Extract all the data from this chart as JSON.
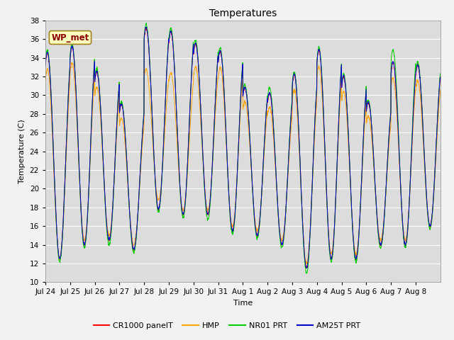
{
  "title": "Temperatures",
  "xlabel": "Time",
  "ylabel": "Temperature (C)",
  "ylim": [
    10,
    38
  ],
  "yticks": [
    10,
    12,
    14,
    16,
    18,
    20,
    22,
    24,
    26,
    28,
    30,
    32,
    34,
    36,
    38
  ],
  "annotation_label": "WP_met",
  "annotation_color": "#8B0000",
  "annotation_bg": "#FFFFC0",
  "series_colors": [
    "#FF0000",
    "#FFA500",
    "#00CC00",
    "#0000CD"
  ],
  "series_labels": [
    "CR1000 panelT",
    "HMP",
    "NR01 PRT",
    "AM25T PRT"
  ],
  "plot_bg_color": "#DCDCDC",
  "fig_bg_color": "#F2F2F2",
  "n_days": 16,
  "points_per_day": 144,
  "day_labels": [
    "Jul 24",
    "Jul 25",
    "Jul 26",
    "Jul 27",
    "Jul 28",
    "Jul 29",
    "Jul 30",
    "Jul 31",
    "Aug 1",
    "Aug 2",
    "Aug 3",
    "Aug 4",
    "Aug 5",
    "Aug 6",
    "Aug 7",
    "Aug 8"
  ],
  "daily_max": [
    34.5,
    35.2,
    32.5,
    29.0,
    37.2,
    36.8,
    35.5,
    34.7,
    30.8,
    30.2,
    32.2,
    34.8,
    32.0,
    29.2,
    33.5,
    33.2
  ],
  "daily_min": [
    12.5,
    14.0,
    14.5,
    13.5,
    17.8,
    17.2,
    17.2,
    15.5,
    15.0,
    14.0,
    11.5,
    12.5,
    12.5,
    14.0,
    14.0,
    16.0
  ],
  "peak_hour": [
    0.58,
    0.58,
    0.58,
    0.58,
    0.58,
    0.58,
    0.58,
    0.58,
    0.58,
    0.58,
    0.58,
    0.58,
    0.58,
    0.58,
    0.58,
    0.58
  ],
  "hmp_max_scale": [
    0.95,
    0.95,
    0.95,
    0.95,
    0.88,
    0.88,
    0.93,
    0.95,
    0.95,
    0.95,
    0.95,
    0.95,
    0.95,
    0.95,
    0.95,
    0.95
  ],
  "hmp_min_offset": [
    0.0,
    0.5,
    0.5,
    0.5,
    1.0,
    0.5,
    0.5,
    0.5,
    0.5,
    0.5,
    0.5,
    0.5,
    0.5,
    0.5,
    0.5,
    0.0
  ],
  "nr01_max_scale": [
    1.01,
    1.01,
    1.01,
    1.01,
    1.01,
    1.01,
    1.01,
    1.01,
    1.01,
    1.02,
    1.01,
    1.01,
    1.01,
    1.01,
    1.04,
    1.01
  ],
  "nr01_min_offset": [
    -0.3,
    -0.3,
    -0.5,
    -0.3,
    -0.3,
    -0.3,
    -0.5,
    -0.3,
    -0.3,
    -0.3,
    -0.5,
    -0.3,
    -0.3,
    -0.3,
    -0.3,
    -0.3
  ],
  "am25t_offset": [
    0.05,
    0.05,
    0.05,
    0.05,
    0.05,
    0.05,
    0.05,
    0.05,
    0.05,
    0.05,
    0.05,
    0.05,
    0.05,
    0.05,
    0.05,
    0.05
  ]
}
